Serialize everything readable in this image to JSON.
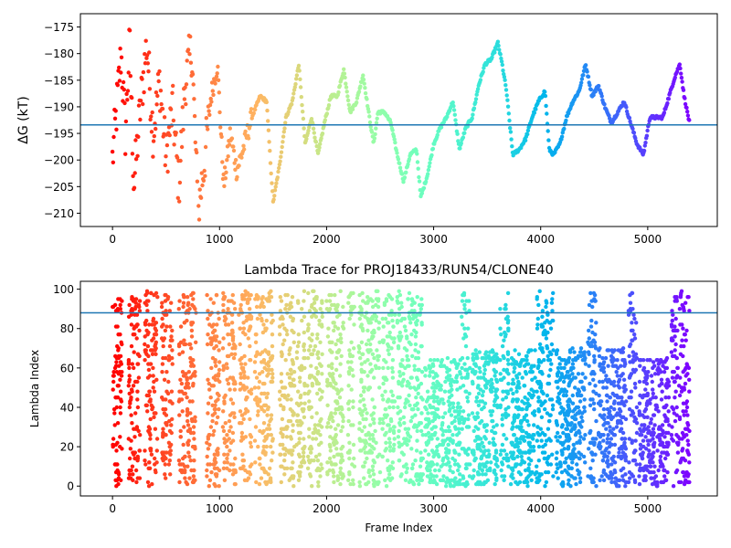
{
  "chart_data": [
    {
      "type": "scatter",
      "title": "",
      "xlabel": "",
      "ylabel": "ΔG (kT)",
      "xlim": [
        -300,
        5650
      ],
      "ylim": [
        -212.5,
        -172.5
      ],
      "xticks": [
        0,
        1000,
        2000,
        3000,
        4000,
        5000
      ],
      "yticks": [
        -210,
        -205,
        -200,
        -195,
        -190,
        -185,
        -180,
        -175
      ],
      "hline": -193.4,
      "hline_color": "#1f77b4",
      "colormap": "rainbow (red at frame 0 to violet at final frame)",
      "n_frames": 5400,
      "series": [
        {
          "values_desc": "free energy trace per frame",
          "x": [
            0,
            40,
            80,
            120,
            160,
            200,
            260,
            320,
            380,
            440,
            500,
            560,
            620,
            680,
            740,
            800,
            860,
            920,
            980,
            1040,
            1100,
            1160,
            1220,
            1300,
            1380,
            1440,
            1500,
            1560,
            1620,
            1680,
            1740,
            1800,
            1860,
            1920,
            1980,
            2040,
            2100,
            2160,
            2220,
            2280,
            2340,
            2400,
            2440,
            2480,
            2540,
            2600,
            2660,
            2720,
            2780,
            2840,
            2880,
            2940,
            3000,
            3060,
            3120,
            3180,
            3240,
            3300,
            3360,
            3420,
            3480,
            3540,
            3600,
            3640,
            3680,
            3740,
            3800,
            3860,
            3920,
            3980,
            4040,
            4080,
            4120,
            4180,
            4240,
            4300,
            4360,
            4420,
            4480,
            4540,
            4600,
            4660,
            4720,
            4780,
            4840,
            4900,
            4960,
            5020,
            5080,
            5140,
            5200,
            5260,
            5300,
            5340,
            5390
          ],
          "y": [
            -200,
            -190,
            -180,
            -195,
            -178,
            -205,
            -190,
            -178,
            -195,
            -185,
            -200,
            -190,
            -205,
            -185,
            -179,
            -210,
            -200,
            -188,
            -182,
            -205,
            -195,
            -202,
            -198,
            -192,
            -188,
            -189,
            -208,
            -201,
            -192,
            -189,
            -182,
            -197,
            -192,
            -199,
            -193,
            -188,
            -188,
            -183,
            -191,
            -189,
            -184,
            -192,
            -197,
            -191,
            -191,
            -193,
            -199,
            -204,
            -199,
            -198,
            -207,
            -203,
            -197,
            -194,
            -192,
            -189,
            -198,
            -194,
            -192,
            -186,
            -182,
            -181,
            -178,
            -182,
            -187,
            -199,
            -198,
            -196,
            -192,
            -189,
            -187,
            -198,
            -199,
            -197,
            -192,
            -189,
            -187,
            -182,
            -188,
            -186,
            -190,
            -193,
            -191,
            -189,
            -193,
            -197,
            -199,
            -192,
            -192,
            -192,
            -188,
            -184,
            -182,
            -188,
            -193
          ]
        }
      ]
    },
    {
      "type": "scatter",
      "title": "Lambda Trace for PROJ18433/RUN54/CLONE40",
      "xlabel": "Frame Index",
      "ylabel": "Lambda Index",
      "xlim": [
        -300,
        5650
      ],
      "ylim": [
        -5,
        104
      ],
      "xticks": [
        0,
        1000,
        2000,
        3000,
        4000,
        5000
      ],
      "yticks": [
        0,
        20,
        40,
        60,
        80,
        100
      ],
      "hline": 88,
      "hline_color": "#1f77b4",
      "colormap": "rainbow (red at frame 0 to violet at final frame)",
      "n_frames": 5400,
      "series": [
        {
          "values_desc": "lambda index per frame, sweeping between 0 and 99 in repeated bands",
          "bands": [
            {
              "x0": 0,
              "x1": 90,
              "low": 0,
              "high": 98
            },
            {
              "x0": 150,
              "x1": 260,
              "low": 0,
              "high": 99
            },
            {
              "x0": 300,
              "x1": 420,
              "low": 0,
              "high": 99
            },
            {
              "x0": 460,
              "x1": 560,
              "low": 0,
              "high": 99
            },
            {
              "x0": 620,
              "x1": 780,
              "low": 0,
              "high": 99
            },
            {
              "x0": 880,
              "x1": 1000,
              "low": 0,
              "high": 99
            },
            {
              "x0": 1030,
              "x1": 1150,
              "low": 0,
              "high": 99
            },
            {
              "x0": 1180,
              "x1": 1300,
              "low": 0,
              "high": 99
            },
            {
              "x0": 1330,
              "x1": 1500,
              "low": 0,
              "high": 99
            },
            {
              "x0": 1560,
              "x1": 1700,
              "low": 0,
              "high": 99
            },
            {
              "x0": 1720,
              "x1": 1800,
              "low": 0,
              "high": 99
            },
            {
              "x0": 1820,
              "x1": 1960,
              "low": 0,
              "high": 99
            },
            {
              "x0": 2000,
              "x1": 2160,
              "low": 0,
              "high": 99
            },
            {
              "x0": 2200,
              "x1": 2260,
              "low": 0,
              "high": 99
            },
            {
              "x0": 2300,
              "x1": 2500,
              "low": 0,
              "high": 99
            },
            {
              "x0": 2520,
              "x1": 2640,
              "low": 0,
              "high": 99
            },
            {
              "x0": 2660,
              "x1": 2900,
              "low": 0,
              "high": 99
            },
            {
              "x0": 2920,
              "x1": 3250,
              "low": 0,
              "high": 65
            },
            {
              "x0": 3260,
              "x1": 3340,
              "low": 0,
              "high": 99
            },
            {
              "x0": 3360,
              "x1": 3600,
              "low": 0,
              "high": 70
            },
            {
              "x0": 3620,
              "x1": 3700,
              "low": 0,
              "high": 99
            },
            {
              "x0": 3720,
              "x1": 3950,
              "low": 0,
              "high": 70
            },
            {
              "x0": 3960,
              "x1": 4120,
              "low": 0,
              "high": 99
            },
            {
              "x0": 4140,
              "x1": 4420,
              "low": 0,
              "high": 70
            },
            {
              "x0": 4440,
              "x1": 4520,
              "low": 0,
              "high": 99
            },
            {
              "x0": 4540,
              "x1": 4800,
              "low": 0,
              "high": 70
            },
            {
              "x0": 4820,
              "x1": 4900,
              "low": 0,
              "high": 99
            },
            {
              "x0": 4920,
              "x1": 5200,
              "low": 0,
              "high": 65
            },
            {
              "x0": 5220,
              "x1": 5390,
              "low": 0,
              "high": 99
            }
          ]
        }
      ]
    }
  ]
}
